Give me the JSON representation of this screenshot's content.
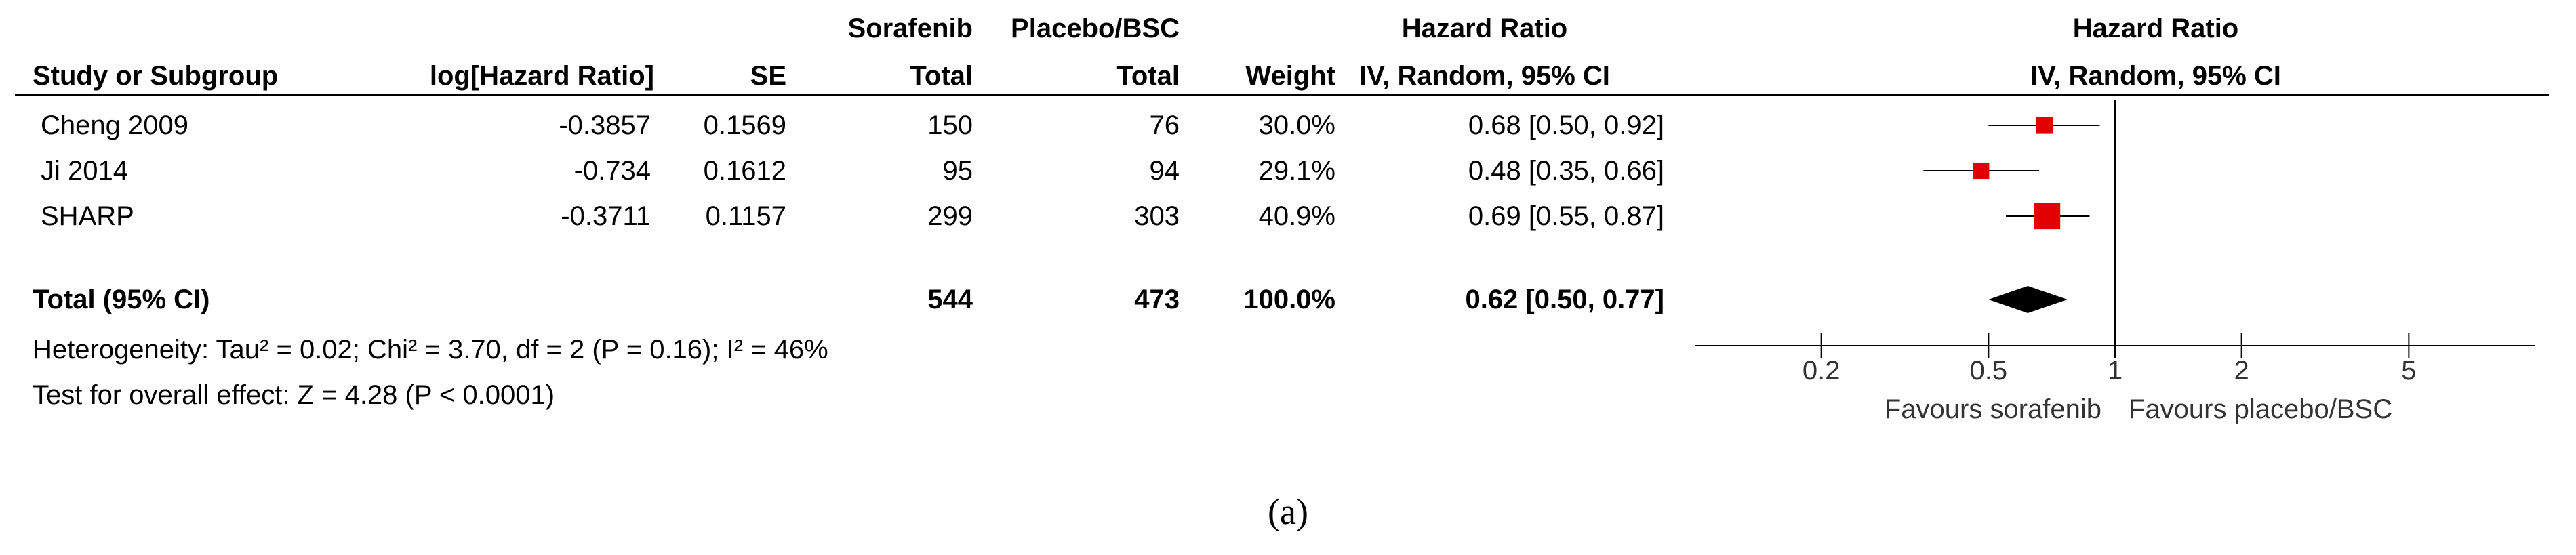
{
  "chart_data": {
    "type": "forest",
    "group_headers": {
      "experimental": "Sorafenib",
      "control": "Placebo/BSC",
      "effect": "Hazard Ratio",
      "plot": "Hazard Ratio"
    },
    "columns": {
      "study": "Study or Subgroup",
      "loghr": "log[Hazard Ratio]",
      "se": "SE",
      "total_exp": "Total",
      "total_ctrl": "Total",
      "weight": "Weight",
      "effect_method": "IV, Random, 95% CI",
      "plot_method": "IV, Random, 95% CI"
    },
    "studies": [
      {
        "name": "Cheng 2009",
        "loghr": "-0.3857",
        "se": "0.1569",
        "total_exp": "150",
        "total_ctrl": "76",
        "weight": "30.0%",
        "ci_text": "0.68 [0.50, 0.92]",
        "hr": 0.68,
        "lower": 0.5,
        "upper": 0.92,
        "weight_value": 30.0
      },
      {
        "name": "Ji 2014",
        "loghr": "-0.734",
        "se": "0.1612",
        "total_exp": "95",
        "total_ctrl": "94",
        "weight": "29.1%",
        "ci_text": "0.48 [0.35, 0.66]",
        "hr": 0.48,
        "lower": 0.35,
        "upper": 0.66,
        "weight_value": 29.1
      },
      {
        "name": "SHARP",
        "loghr": "-0.3711",
        "se": "0.1157",
        "total_exp": "299",
        "total_ctrl": "303",
        "weight": "40.9%",
        "ci_text": "0.69 [0.55, 0.87]",
        "hr": 0.69,
        "lower": 0.55,
        "upper": 0.87,
        "weight_value": 40.9
      }
    ],
    "total": {
      "label": "Total (95% CI)",
      "total_exp": "544",
      "total_ctrl": "473",
      "weight": "100.0%",
      "ci_text": "0.62 [0.50, 0.77]",
      "hr": 0.62,
      "lower": 0.5,
      "upper": 0.77
    },
    "heterogeneity": "Heterogeneity: Tau² = 0.02; Chi² = 3.70, df = 2 (P = 0.16); I² = 46%",
    "overall_effect": "Test for overall effect: Z = 4.28 (P < 0.0001)",
    "x_scale": "log",
    "xlim": [
      0.1,
      10
    ],
    "ticks": [
      "0.2",
      "0.5",
      "1",
      "2",
      "5"
    ],
    "favours_left": "Favours sorafenib",
    "favours_right": "Favours placebo/BSC",
    "colors": {
      "study_marker": "#e00000",
      "summary_diamond": "#000000"
    }
  },
  "caption": "(a)"
}
